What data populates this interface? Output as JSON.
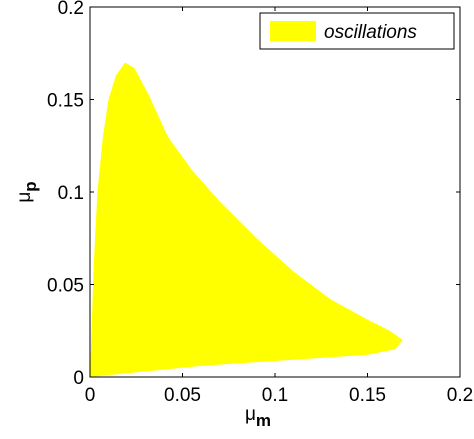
{
  "chart_data": {
    "type": "area",
    "xlabel": "μ",
    "xlabel_subscript": "m",
    "ylabel": "μ",
    "ylabel_subscript": "p",
    "xlim": [
      0,
      0.2
    ],
    "xticks": [
      0,
      0.05,
      0.1,
      0.15,
      0.2
    ],
    "ylim": [
      0,
      0.2
    ],
    "yticks": [
      0,
      0.05,
      0.1,
      0.15,
      0.2
    ],
    "grid": false,
    "legend": "upper right",
    "series": [
      {
        "name": "oscillations",
        "color": "#ffff00",
        "x": [
          0,
          0.001,
          0.002,
          0.004,
          0.007,
          0.01,
          0.014,
          0.019,
          0.024,
          0.032,
          0.042,
          0.055,
          0.07,
          0.09,
          0.11,
          0.13,
          0.15,
          0.162,
          0.169,
          0.165,
          0.15,
          0.12,
          0.09,
          0.06,
          0.03,
          0.01,
          0
        ],
        "values": [
          0,
          0.03,
          0.06,
          0.1,
          0.13,
          0.15,
          0.163,
          0.17,
          0.167,
          0.152,
          0.13,
          0.112,
          0.095,
          0.075,
          0.057,
          0.042,
          0.031,
          0.025,
          0.02,
          0.015,
          0.012,
          0.01,
          0.008,
          0.006,
          0.003,
          0.001,
          0
        ]
      }
    ]
  }
}
